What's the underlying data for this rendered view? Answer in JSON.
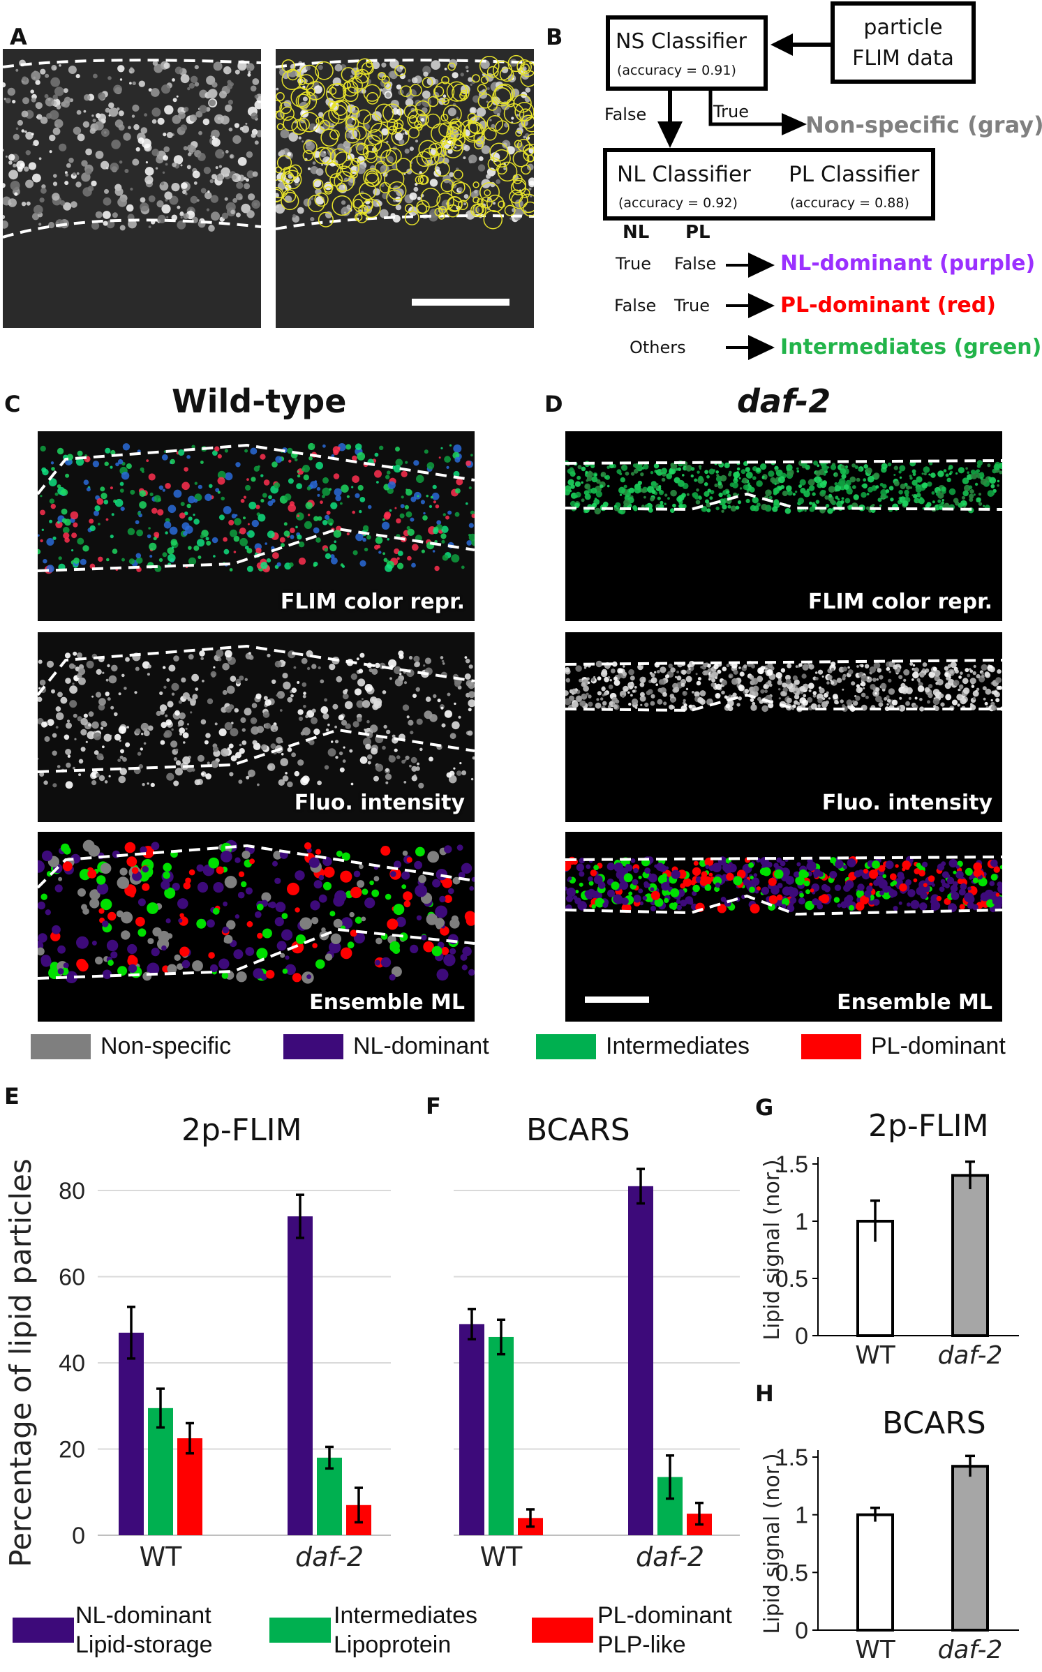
{
  "panels": {
    "A": "A",
    "B": "B",
    "C": "C",
    "D": "D",
    "E": "E",
    "F": "F",
    "G": "G",
    "H": "H"
  },
  "flowchart": {
    "ns_classifier": "NS Classifier",
    "ns_accuracy": "(accuracy = 0.91)",
    "particle_data_line1": "particle",
    "particle_data_line2": "FLIM data",
    "false_label": "False",
    "true_label": "True",
    "nonspecific_out": "Non-specific (gray)",
    "nl_classifier": "NL Classifier",
    "nl_accuracy": "(accuracy = 0.92)",
    "pl_classifier": "PL Classifier",
    "pl_accuracy": "(accuracy = 0.88)",
    "col_nl": "NL",
    "col_pl": "PL",
    "rows": [
      {
        "nl": "True",
        "pl": "False",
        "out": "NL-dominant (purple)",
        "color": "#9B30FF"
      },
      {
        "nl": "False",
        "pl": "True",
        "out": "PL-dominant (red)",
        "color": "#FF0000"
      },
      {
        "nl": "Others",
        "pl": "",
        "out": "Intermediates (green)",
        "color": "#22B44A"
      }
    ],
    "gray": "#808080"
  },
  "sections": {
    "wildtype": "Wild-type",
    "daf2": "daf-2"
  },
  "image_labels": {
    "flim": "FLIM color repr.",
    "fluo": "Fluo. intensity",
    "ensemble": "Ensemble ML"
  },
  "class_legend": [
    {
      "label": "Non-specific",
      "color": "#7f7f7f"
    },
    {
      "label": "NL-dominant",
      "color": "#3d0a7a"
    },
    {
      "label": "Intermediates",
      "color": "#00b050"
    },
    {
      "label": "PL-dominant",
      "color": "#ff0000"
    }
  ],
  "bottom_legend": [
    {
      "line1": "NL-dominant",
      "line2": "Lipid-storage",
      "color": "#3d0a7a"
    },
    {
      "line1": "Intermediates",
      "line2": "Lipoprotein",
      "color": "#00b050"
    },
    {
      "line1": "PL-dominant",
      "line2": "PLP-like",
      "color": "#ff0000"
    }
  ],
  "chart_data": [
    {
      "panel": "E",
      "type": "bar",
      "title": "2p-FLIM",
      "ylabel": "Percentage of lipid particles",
      "categories": [
        "WT",
        "daf-2"
      ],
      "ylim": [
        0,
        80
      ],
      "yticks": [
        0,
        20,
        40,
        60,
        80
      ],
      "grid": true,
      "series": [
        {
          "name": "NL-dominant",
          "color": "#3d0a7a",
          "values": [
            47,
            74
          ],
          "errors": [
            6,
            5
          ]
        },
        {
          "name": "Intermediates",
          "color": "#00b050",
          "values": [
            29.5,
            18
          ],
          "errors": [
            4.5,
            2.5
          ]
        },
        {
          "name": "PL-dominant",
          "color": "#ff0000",
          "values": [
            22.5,
            7
          ],
          "errors": [
            3.5,
            4
          ]
        }
      ]
    },
    {
      "panel": "F",
      "type": "bar",
      "title": "BCARS",
      "categories": [
        "WT",
        "daf-2"
      ],
      "ylim": [
        0,
        80
      ],
      "grid": true,
      "series": [
        {
          "name": "NL-dominant",
          "color": "#3d0a7a",
          "values": [
            49,
            81
          ],
          "errors": [
            3.5,
            4
          ]
        },
        {
          "name": "Intermediates",
          "color": "#00b050",
          "values": [
            46,
            13.5
          ],
          "errors": [
            4,
            5
          ]
        },
        {
          "name": "PL-dominant",
          "color": "#ff0000",
          "values": [
            4,
            5
          ],
          "errors": [
            2,
            2.5
          ]
        }
      ]
    },
    {
      "panel": "G",
      "type": "bar",
      "title": "2p-FLIM",
      "ylabel": "Lipid signal (nor.)",
      "categories": [
        "WT",
        "daf-2"
      ],
      "ylim": [
        0,
        1.5
      ],
      "yticks": [
        "0",
        "0.5",
        "1",
        "1.5"
      ],
      "values": [
        1.0,
        1.4
      ],
      "errors": [
        0.18,
        0.12
      ],
      "colors": [
        "#ffffff",
        "#a6a6a6"
      ]
    },
    {
      "panel": "H",
      "type": "bar",
      "title": "BCARS",
      "ylabel": "Lipid signal (nor.)",
      "categories": [
        "WT",
        "daf-2"
      ],
      "ylim": [
        0,
        1.5
      ],
      "yticks": [
        "0",
        "0.5",
        "1",
        "1.5"
      ],
      "values": [
        1.0,
        1.42
      ],
      "errors": [
        0.06,
        0.09
      ],
      "colors": [
        "#ffffff",
        "#a6a6a6"
      ]
    }
  ]
}
